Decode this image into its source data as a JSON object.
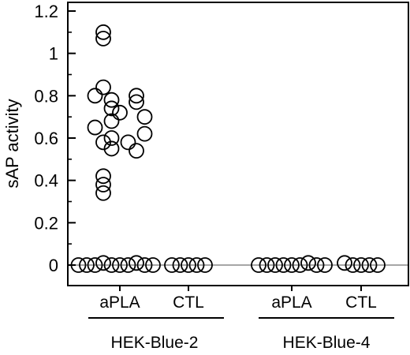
{
  "chart_data": {
    "type": "scatter",
    "title": "",
    "ylabel": "sAP activity",
    "xlabel": "",
    "ylim": [
      0,
      1.2
    ],
    "yticks": [
      "0",
      "0.2",
      "0.4",
      "0.6",
      "0.8",
      "1",
      "1.2"
    ],
    "y_minor_step": 0.1,
    "reference_line_y": 0,
    "marker": "open-circle",
    "groups": [
      {
        "name": "HEK-Blue-2",
        "categories": [
          {
            "label": "aPLA",
            "points": [
              {
                "x": -2,
                "y": 1.1
              },
              {
                "x": -2,
                "y": 1.07
              },
              {
                "x": -2,
                "y": 0.84
              },
              {
                "x": -3,
                "y": 0.8
              },
              {
                "x": 2,
                "y": 0.8
              },
              {
                "x": -1,
                "y": 0.78
              },
              {
                "x": 2,
                "y": 0.77
              },
              {
                "x": -1,
                "y": 0.74
              },
              {
                "x": 0,
                "y": 0.72
              },
              {
                "x": 3,
                "y": 0.7
              },
              {
                "x": -1,
                "y": 0.68
              },
              {
                "x": -3,
                "y": 0.65
              },
              {
                "x": 3,
                "y": 0.62
              },
              {
                "x": -1,
                "y": 0.6
              },
              {
                "x": 1,
                "y": 0.58
              },
              {
                "x": -2,
                "y": 0.58
              },
              {
                "x": 2,
                "y": 0.54
              },
              {
                "x": -1,
                "y": 0.55
              },
              {
                "x": -2,
                "y": 0.42
              },
              {
                "x": -2,
                "y": 0.38
              },
              {
                "x": -2,
                "y": 0.34
              },
              {
                "x": -5,
                "y": 0
              },
              {
                "x": -4,
                "y": 0
              },
              {
                "x": -3,
                "y": 0
              },
              {
                "x": -2,
                "y": 0.01
              },
              {
                "x": -1,
                "y": 0
              },
              {
                "x": 0,
                "y": 0
              },
              {
                "x": 1,
                "y": 0
              },
              {
                "x": 2,
                "y": 0.01
              },
              {
                "x": 3,
                "y": 0
              },
              {
                "x": 4,
                "y": 0
              }
            ]
          },
          {
            "label": "CTL",
            "points": [
              {
                "x": -2,
                "y": 0
              },
              {
                "x": -1,
                "y": 0
              },
              {
                "x": 0,
                "y": 0
              },
              {
                "x": 1,
                "y": 0
              },
              {
                "x": 2,
                "y": 0
              }
            ]
          }
        ]
      },
      {
        "name": "HEK-Blue-4",
        "categories": [
          {
            "label": "aPLA",
            "points": [
              {
                "x": -4,
                "y": 0
              },
              {
                "x": -3,
                "y": 0
              },
              {
                "x": -2,
                "y": 0
              },
              {
                "x": -1,
                "y": 0
              },
              {
                "x": 0,
                "y": 0
              },
              {
                "x": 1,
                "y": 0
              },
              {
                "x": 2,
                "y": 0.01
              },
              {
                "x": 3,
                "y": 0
              },
              {
                "x": 4,
                "y": 0
              }
            ]
          },
          {
            "label": "CTL",
            "points": [
              {
                "x": -2,
                "y": 0.01
              },
              {
                "x": -1,
                "y": 0
              },
              {
                "x": 0,
                "y": 0
              },
              {
                "x": 1,
                "y": 0
              },
              {
                "x": 2,
                "y": 0
              }
            ]
          }
        ]
      }
    ]
  }
}
